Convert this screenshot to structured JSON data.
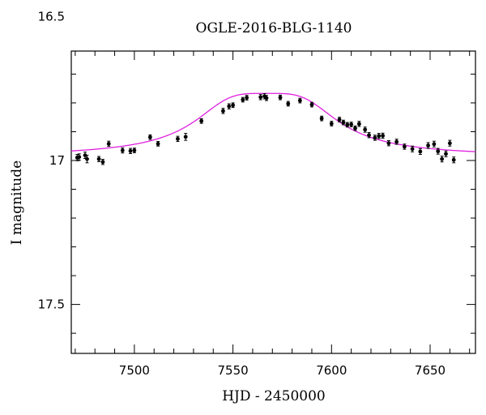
{
  "chart_data": {
    "type": "scatter",
    "title": "OGLE-2016-BLG-1140",
    "xlabel": "HJD - 2450000",
    "ylabel": "I magnitude",
    "xlim": [
      7468,
      7673
    ],
    "ylim": [
      17.67,
      16.62
    ],
    "y_inverted": true,
    "grid": false,
    "x_major_ticks": [
      7500,
      7550,
      7600,
      7650
    ],
    "x_minor_step": 10,
    "y_major_ticks": [
      16.5,
      17,
      17.5
    ],
    "y_tick_labels": [
      "16.5",
      "17",
      "17.5"
    ],
    "y_minor_step": 0.1,
    "colors": {
      "data": "#000000",
      "model": "#e020e0"
    },
    "series": [
      {
        "kind": "data",
        "x": [
          7471,
          7472,
          7475,
          7476,
          7482,
          7484,
          7487,
          7494,
          7498,
          7500,
          7508,
          7512,
          7522,
          7526,
          7534,
          7545,
          7548,
          7550,
          7555,
          7557,
          7564,
          7566,
          7567,
          7574,
          7578,
          7584,
          7590,
          7595,
          7600,
          7604,
          7606,
          7608,
          7610,
          7612,
          7614,
          7617,
          7619,
          7622,
          7624,
          7626,
          7629,
          7633,
          7637,
          7641,
          7645,
          7649,
          7652,
          7654,
          7656,
          7658,
          7660,
          7662
        ],
        "y": [
          16.99,
          16.988,
          16.982,
          16.995,
          16.995,
          17.005,
          16.942,
          16.965,
          16.967,
          16.965,
          16.919,
          16.942,
          16.925,
          16.918,
          16.863,
          16.828,
          16.812,
          16.808,
          16.789,
          16.782,
          16.78,
          16.777,
          16.783,
          16.781,
          16.803,
          16.792,
          16.806,
          16.854,
          16.872,
          16.858,
          16.868,
          16.876,
          16.875,
          16.888,
          16.873,
          16.893,
          16.912,
          16.921,
          16.915,
          16.914,
          16.94,
          16.935,
          16.952,
          16.96,
          16.969,
          16.948,
          16.943,
          16.968,
          16.995,
          16.977,
          16.94,
          16.998
        ],
        "yerr": [
          0.011,
          0.011,
          0.011,
          0.013,
          0.009,
          0.009,
          0.009,
          0.009,
          0.009,
          0.008,
          0.008,
          0.008,
          0.009,
          0.012,
          0.008,
          0.009,
          0.009,
          0.008,
          0.008,
          0.008,
          0.009,
          0.009,
          0.009,
          0.008,
          0.008,
          0.008,
          0.008,
          0.008,
          0.008,
          0.008,
          0.008,
          0.008,
          0.008,
          0.008,
          0.009,
          0.009,
          0.009,
          0.009,
          0.009,
          0.009,
          0.009,
          0.009,
          0.009,
          0.01,
          0.01,
          0.01,
          0.01,
          0.01,
          0.01,
          0.01,
          0.01,
          0.01
        ]
      },
      {
        "kind": "model",
        "peak_x": 7567,
        "baseline_mag": 16.987,
        "peak_mag": 16.767,
        "width": 30
      }
    ]
  }
}
